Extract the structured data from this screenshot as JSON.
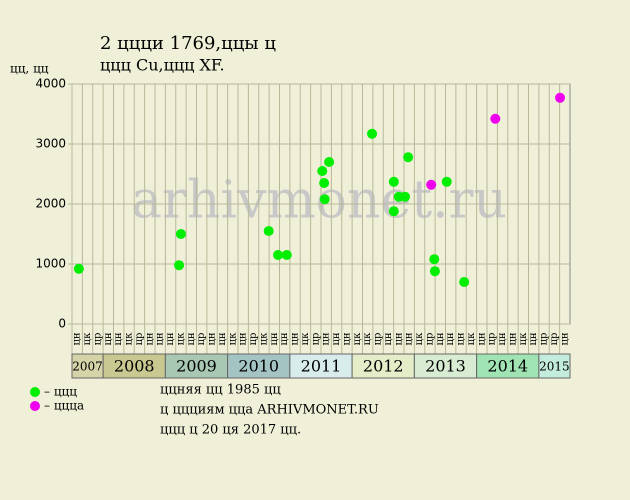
{
  "chart_data": {
    "type": "scatter",
    "title": "2 ццци 1769,ццы ц",
    "subtitle": "ццц Cu,ццц XF.",
    "y_label": "цц, цц",
    "watermark": "arhivmonet.ru",
    "xlim": [
      2007.5,
      2015.5
    ],
    "ylim": [
      0,
      4000
    ],
    "yticks": [
      0,
      1000,
      2000,
      3000,
      4000
    ],
    "columns": [
      "цн",
      "цк",
      "цр",
      "цн",
      "цн",
      "цк",
      "цр",
      "цн",
      "цн",
      "цн",
      "цк",
      "цн",
      "цр",
      "цн",
      "цн",
      "цк",
      "цн",
      "цр",
      "цк",
      "цн",
      "цн",
      "цн",
      "цк",
      "цр",
      "цн",
      "цн",
      "цн",
      "цк",
      "цк",
      "цр",
      "цн",
      "цн",
      "цн",
      "цк",
      "цр",
      "цн",
      "цн",
      "цн",
      "цк",
      "цн",
      "цр",
      "цн",
      "цн",
      "цк",
      "цн",
      "цр",
      "цр",
      "цн"
    ],
    "years": [
      {
        "label": "2007",
        "color": "#d4d4a8"
      },
      {
        "label": "2008",
        "color": "#c8c890"
      },
      {
        "label": "2009",
        "color": "#a8c8b4"
      },
      {
        "label": "2010",
        "color": "#a4c4c4"
      },
      {
        "label": "2011",
        "color": "#d8ecec"
      },
      {
        "label": "2012",
        "color": "#e4ecc8"
      },
      {
        "label": "2013",
        "color": "#d8ecd4"
      },
      {
        "label": "2014",
        "color": "#a0e4b4"
      },
      {
        "label": "2015",
        "color": "#c4ecdc"
      }
    ],
    "series": [
      {
        "name": "– ццц",
        "color": "#00ee00",
        "x": [
          2007.61,
          2009.22,
          2009.25,
          2010.66,
          2010.81,
          2010.95,
          2011.52,
          2011.55,
          2011.56,
          2011.63,
          2012.32,
          2012.67,
          2012.67,
          2012.75,
          2012.85,
          2012.9,
          2013.32,
          2013.33,
          2013.52,
          2013.8
        ],
        "values": [
          920,
          980,
          1500,
          1550,
          1150,
          1150,
          2550,
          2350,
          2080,
          2700,
          3170,
          2370,
          1880,
          2120,
          2120,
          2780,
          1080,
          880,
          2370,
          700
        ]
      },
      {
        "name": "– ццца",
        "color": "#ee00ee",
        "x": [
          2013.27,
          2014.3,
          2015.34
        ],
        "values": [
          2320,
          3420,
          3770
        ]
      }
    ],
    "notes": [
      "ццняя цц 1985 цц",
      "ц ццциям цца ARHIVMONET.RU",
      "ццц ц 20 ця 2017 цц."
    ]
  }
}
